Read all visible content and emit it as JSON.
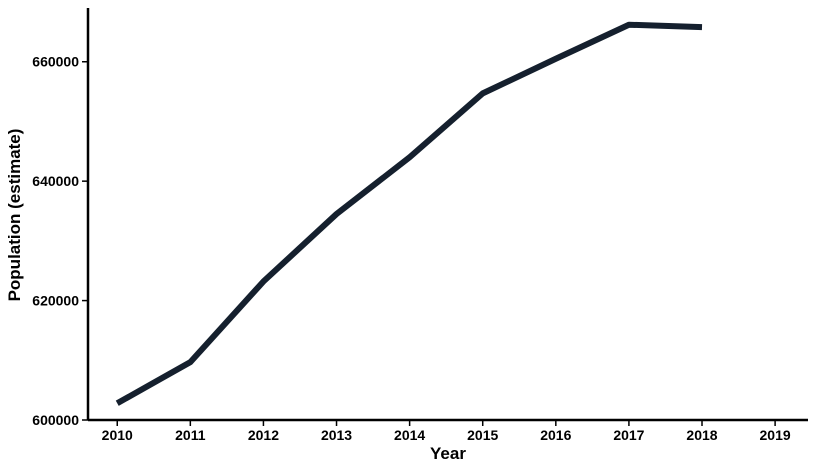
{
  "chart_data": {
    "type": "line",
    "title": "",
    "xlabel": "Year",
    "ylabel": "Population (estimate)",
    "x": [
      2010,
      2011,
      2012,
      2013,
      2014,
      2015,
      2016,
      2017,
      2018
    ],
    "series": [
      {
        "values": [
          602800,
          609700,
          623200,
          634500,
          644000,
          654700,
          660500,
          666200,
          665800
        ],
        "color": "#15202e"
      }
    ],
    "xticks": [
      "2010",
      "2011",
      "2012",
      "2013",
      "2014",
      "2015",
      "2016",
      "2017",
      "2018",
      "2019"
    ],
    "yticks": [
      "600000",
      "620000",
      "640000",
      "660000"
    ],
    "xlim": [
      2009.6,
      2019.45
    ],
    "ylim": [
      600000,
      669000
    ],
    "grid": false,
    "legend": "none"
  }
}
